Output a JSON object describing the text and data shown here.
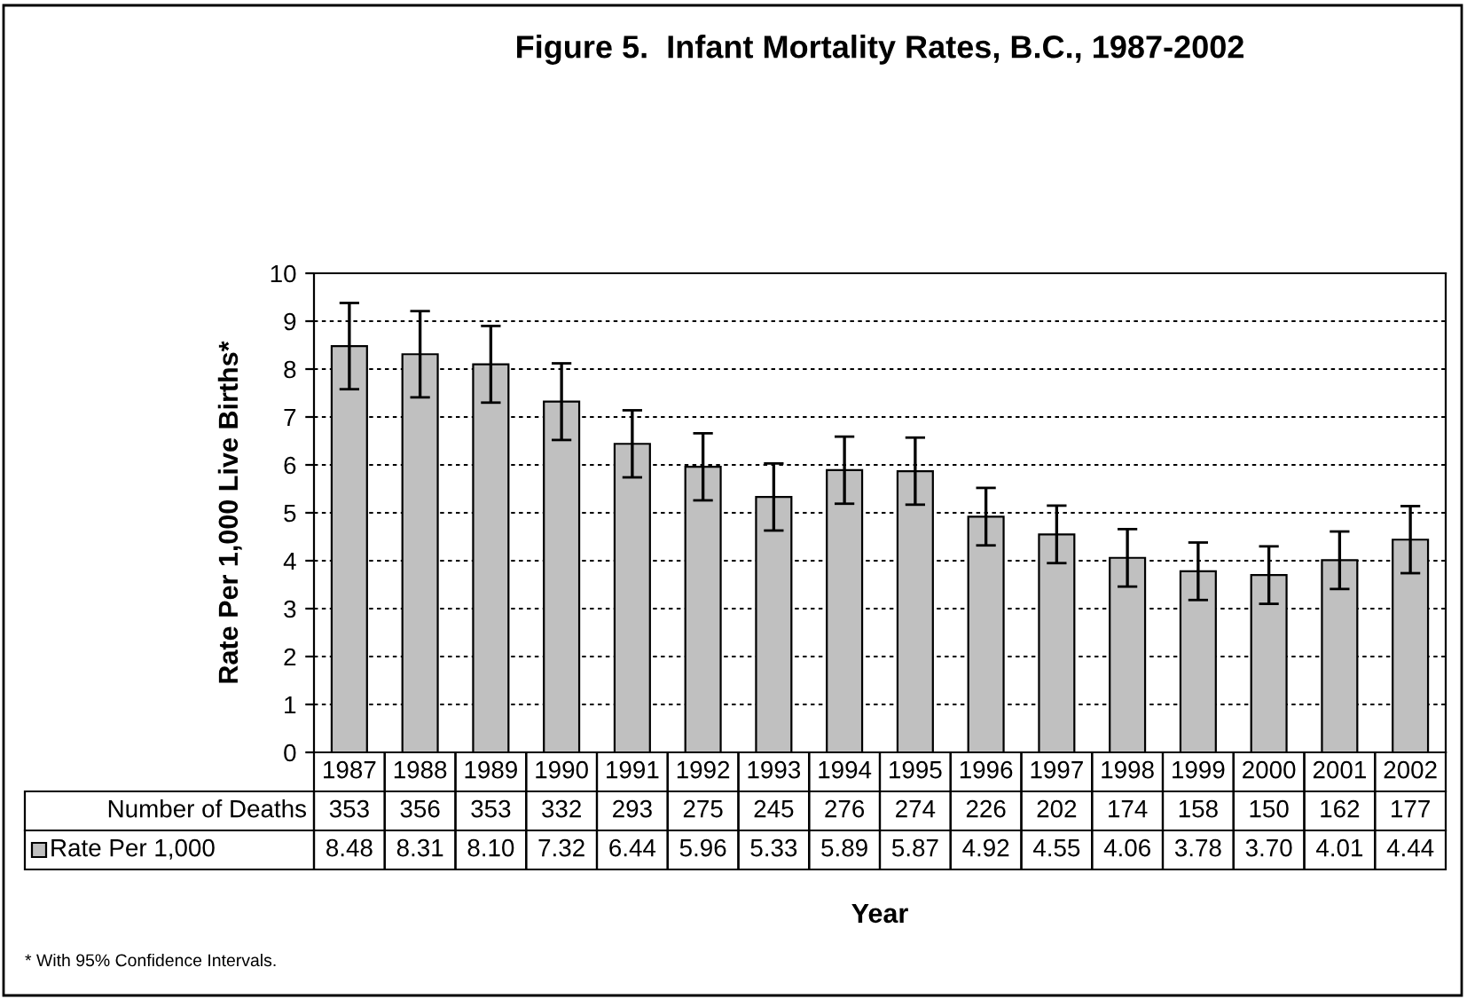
{
  "chart_data": {
    "type": "bar",
    "title": "Figure 5.  Infant Mortality Rates, B.C., 1987-2002",
    "xlabel": "Year",
    "ylabel": "Rate Per 1,000 Live Births*",
    "categories": [
      "1987",
      "1988",
      "1989",
      "1990",
      "1991",
      "1992",
      "1993",
      "1994",
      "1995",
      "1996",
      "1997",
      "1998",
      "1999",
      "2000",
      "2001",
      "2002"
    ],
    "series": [
      {
        "name": "Rate Per 1,000",
        "color": "#c0c0c0",
        "values": [
          8.48,
          8.31,
          8.1,
          7.32,
          6.44,
          5.96,
          5.33,
          5.89,
          5.87,
          4.92,
          4.55,
          4.06,
          3.78,
          3.7,
          4.01,
          4.44
        ],
        "errors": [
          0.9,
          0.9,
          0.8,
          0.8,
          0.7,
          0.7,
          0.7,
          0.7,
          0.7,
          0.6,
          0.6,
          0.6,
          0.6,
          0.6,
          0.6,
          0.7
        ]
      }
    ],
    "value_labels": [
      "8.48",
      "8.31",
      "8.10",
      "7.32",
      "6.44",
      "5.96",
      "5.33",
      "5.89",
      "5.87",
      "4.92",
      "4.55",
      "4.06",
      "3.78",
      "3.70",
      "4.01",
      "4.44"
    ],
    "ylim": [
      0,
      10
    ],
    "yticks": [
      0,
      1,
      2,
      3,
      4,
      5,
      6,
      7,
      8,
      9,
      10
    ],
    "grid": "y",
    "legend": "bottom left",
    "annotations": [
      "* With 95% Confidence Intervals.",
      "Number of Deaths",
      "353",
      "356",
      "353",
      "332",
      "293",
      "275",
      "245",
      "276",
      "274",
      "226",
      "202",
      "174",
      "158",
      "150",
      "162",
      "177"
    ]
  }
}
